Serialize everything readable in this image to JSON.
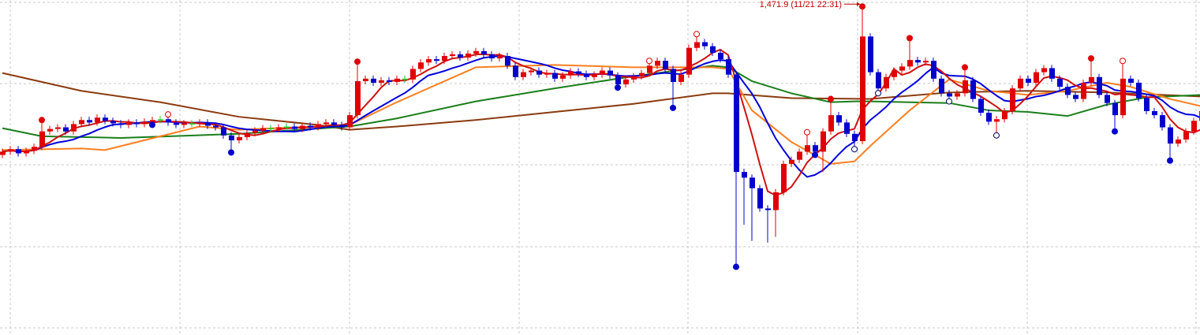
{
  "chart_data": {
    "type": "candlestick",
    "title": "",
    "xlabel": "",
    "ylabel": "",
    "ylim": [
      1431.4,
      1472.7
    ],
    "grid": true,
    "colors": {
      "up": "#e00000",
      "down": "#0000cc",
      "flat": "#22cc22",
      "grid": "#c8c8c8"
    },
    "close": [
      1454.0,
      1454.3,
      1453.8,
      1454.1,
      1454.6,
      1456.5,
      1456.8,
      1457.0,
      1456.5,
      1457.4,
      1457.9,
      1457.6,
      1458.2,
      1457.8,
      1457.5,
      1457.3,
      1457.6,
      1457.4,
      1457.7,
      1457.9,
      1458.0,
      1457.6,
      1457.3,
      1457.5,
      1457.4,
      1457.6,
      1457.2,
      1457.0,
      1456.0,
      1455.4,
      1455.8,
      1456.3,
      1456.6,
      1456.9,
      1456.8,
      1457.0,
      1457.1,
      1456.8,
      1457.2,
      1457.0,
      1457.4,
      1457.6,
      1457.3,
      1457.0,
      1458.5,
      1462.7,
      1463.0,
      1462.5,
      1462.8,
      1462.6,
      1463.0,
      1462.9,
      1464.2,
      1465.0,
      1465.4,
      1465.2,
      1465.8,
      1466.0,
      1465.6,
      1466.1,
      1466.4,
      1466.0,
      1465.5,
      1465.8,
      1464.6,
      1463.2,
      1463.8,
      1464.0,
      1463.5,
      1463.7,
      1463.0,
      1463.4,
      1463.9,
      1463.6,
      1463.2,
      1463.5,
      1464.0,
      1463.4,
      1462.3,
      1462.9,
      1463.3,
      1463.7,
      1464.6,
      1465.2,
      1464.2,
      1462.6,
      1463.5,
      1466.8,
      1467.5,
      1467.0,
      1466.2,
      1465.4,
      1463.5,
      1451.5,
      1450.8,
      1449.5,
      1447.0,
      1446.8,
      1449.0,
      1452.5,
      1453.0,
      1454.0,
      1454.8,
      1454.0,
      1456.5,
      1458.5,
      1457.6,
      1456.2,
      1455.3,
      1468.2,
      1463.8,
      1461.8,
      1463.2,
      1464.0,
      1464.5,
      1465.3,
      1465.0,
      1465.2,
      1463.0,
      1461.2,
      1460.8,
      1461.2,
      1462.8,
      1460.5,
      1458.8,
      1457.7,
      1458.0,
      1459.0,
      1461.8,
      1463.0,
      1462.5,
      1463.8,
      1464.3,
      1463.0,
      1462.0,
      1461.0,
      1460.5,
      1462.5,
      1463.2,
      1461.0,
      1460.0,
      1458.5,
      1463.0,
      1462.5,
      1460.6,
      1459.0,
      1458.5,
      1457.0,
      1455.0,
      1455.5,
      1456.5,
      1457.8,
      1459.0
    ],
    "open": [
      1453.6,
      1454.0,
      1454.3,
      1453.8,
      1454.1,
      1454.6,
      1456.5,
      1456.8,
      1457.0,
      1456.5,
      1457.4,
      1457.9,
      1457.6,
      1458.2,
      1457.8,
      1457.5,
      1457.3,
      1457.6,
      1457.4,
      1457.7,
      1457.9,
      1458.0,
      1457.6,
      1457.3,
      1457.5,
      1457.4,
      1457.6,
      1457.2,
      1457.0,
      1456.0,
      1455.4,
      1455.8,
      1456.3,
      1456.6,
      1456.9,
      1456.8,
      1457.0,
      1457.1,
      1456.8,
      1457.2,
      1457.0,
      1457.4,
      1457.6,
      1457.3,
      1457.0,
      1458.5,
      1462.7,
      1463.0,
      1462.5,
      1462.8,
      1462.6,
      1463.0,
      1462.9,
      1464.2,
      1465.0,
      1465.4,
      1465.2,
      1465.8,
      1466.0,
      1465.6,
      1466.1,
      1466.4,
      1466.0,
      1465.5,
      1465.8,
      1464.6,
      1463.2,
      1463.8,
      1464.0,
      1463.5,
      1463.7,
      1463.0,
      1463.4,
      1463.9,
      1463.6,
      1463.2,
      1463.5,
      1464.0,
      1463.4,
      1462.3,
      1462.9,
      1463.3,
      1463.7,
      1464.6,
      1465.2,
      1464.2,
      1462.6,
      1463.5,
      1466.8,
      1467.5,
      1467.0,
      1466.2,
      1465.4,
      1463.5,
      1451.5,
      1450.8,
      1449.5,
      1447.0,
      1446.8,
      1449.0,
      1452.5,
      1453.0,
      1454.0,
      1454.8,
      1454.0,
      1456.5,
      1458.5,
      1457.6,
      1456.2,
      1455.3,
      1468.2,
      1463.8,
      1461.8,
      1463.2,
      1464.0,
      1464.5,
      1465.3,
      1465.0,
      1465.2,
      1463.0,
      1461.2,
      1460.8,
      1461.2,
      1462.8,
      1460.5,
      1458.8,
      1457.7,
      1458.0,
      1459.0,
      1461.8,
      1463.0,
      1462.5,
      1463.8,
      1464.3,
      1463.0,
      1462.0,
      1461.0,
      1460.5,
      1462.5,
      1463.2,
      1461.0,
      1460.0,
      1458.5,
      1463.0,
      1462.5,
      1460.6,
      1459.0,
      1458.5,
      1457.0,
      1455.0,
      1455.5,
      1456.5,
      1457.8
    ],
    "high_overrides": {
      "5": 1457.9,
      "45": 1465.1,
      "88": 1468.3,
      "102": 1456.2,
      "105": 1460.5,
      "109": 1471.9,
      "115": 1468.0,
      "122": 1464.4,
      "138": 1465.5,
      "142": 1465.0
    },
    "low_overrides": {
      "29": 1453.9,
      "78": 1461.9,
      "85": 1459.4,
      "93": 1439.8,
      "94": 1445.0,
      "95": 1443.0,
      "97": 1442.8,
      "98": 1443.5,
      "104": 1451.5,
      "108": 1454.5,
      "126": 1456.2,
      "141": 1456.5,
      "148": 1452.9
    },
    "markers": [
      {
        "i": 5,
        "type": "high-dot"
      },
      {
        "i": 45,
        "type": "high-dot"
      },
      {
        "i": 105,
        "type": "high-dot"
      },
      {
        "i": 109,
        "type": "high-dot"
      },
      {
        "i": 115,
        "type": "high-dot"
      },
      {
        "i": 122,
        "type": "high-dot"
      },
      {
        "i": 138,
        "type": "high-dot"
      },
      {
        "i": 21,
        "type": "high-circle"
      },
      {
        "i": 82,
        "type": "high-circle"
      },
      {
        "i": 88,
        "type": "high-circle"
      },
      {
        "i": 102,
        "type": "high-circle"
      },
      {
        "i": 142,
        "type": "high-circle"
      },
      {
        "i": 19,
        "type": "low-dot"
      },
      {
        "i": 29,
        "type": "low-dot"
      },
      {
        "i": 78,
        "type": "low-dot"
      },
      {
        "i": 85,
        "type": "low-dot"
      },
      {
        "i": 93,
        "type": "low-dot"
      },
      {
        "i": 103,
        "type": "low-dot"
      },
      {
        "i": 141,
        "type": "low-dot"
      },
      {
        "i": 148,
        "type": "low-dot"
      },
      {
        "i": 108,
        "type": "low-circle"
      },
      {
        "i": 111,
        "type": "low-circle"
      },
      {
        "i": 120,
        "type": "low-circle"
      },
      {
        "i": 126,
        "type": "low-circle"
      }
    ],
    "moving_averages": [
      {
        "color": "#d01010",
        "period": 5
      },
      {
        "color": "#0000dd",
        "period": 10
      },
      {
        "color": "#ff7f20",
        "points_index": [
          0,
          10,
          13,
          25,
          30,
          44,
          50,
          60,
          70,
          80,
          90,
          92,
          95,
          100,
          105,
          108,
          110,
          115,
          120,
          125,
          130,
          135,
          140,
          143,
          148,
          152
        ],
        "values": [
          1454.2,
          1454.4,
          1454.2,
          1457.1,
          1456.7,
          1457.3,
          1460.1,
          1464.4,
          1464.7,
          1464.4,
          1464.4,
          1464.2,
          1459.1,
          1455.2,
          1452.5,
          1452.8,
          1454.7,
          1459.1,
          1462.9,
          1461.5,
          1461.0,
          1461.5,
          1462.5,
          1462.0,
          1460.5,
          1459.6
        ]
      },
      {
        "color": "#1a7f1a",
        "points_index": [
          0,
          5,
          15,
          30,
          44,
          50,
          60,
          70,
          80,
          90,
          92,
          95,
          100,
          105,
          108,
          110,
          120,
          125,
          130,
          135,
          140,
          145,
          152
        ],
        "values": [
          1456.9,
          1455.9,
          1455.7,
          1456.2,
          1457.1,
          1458.1,
          1460.2,
          1461.8,
          1463.3,
          1464.6,
          1464.4,
          1462.7,
          1461.2,
          1460.1,
          1460.2,
          1460.2,
          1460.0,
          1459.1,
          1458.9,
          1458.4,
          1459.8,
          1460.7,
          1461.0
        ]
      },
      {
        "color": "#8b3a0f",
        "points_index": [
          0,
          10,
          20,
          30,
          40,
          44,
          50,
          60,
          70,
          80,
          90,
          92,
          100,
          110,
          120,
          130,
          140,
          152
        ],
        "values": [
          1463.7,
          1461.5,
          1460.1,
          1458.3,
          1457.3,
          1456.7,
          1457.1,
          1457.9,
          1458.9,
          1459.9,
          1461.2,
          1461.2,
          1460.6,
          1460.5,
          1461.3,
          1461.5,
          1461.3,
          1460.8
        ]
      }
    ],
    "annotations": [
      {
        "i": 109,
        "text": "1,471.9 (11/21 22:31)"
      }
    ]
  }
}
